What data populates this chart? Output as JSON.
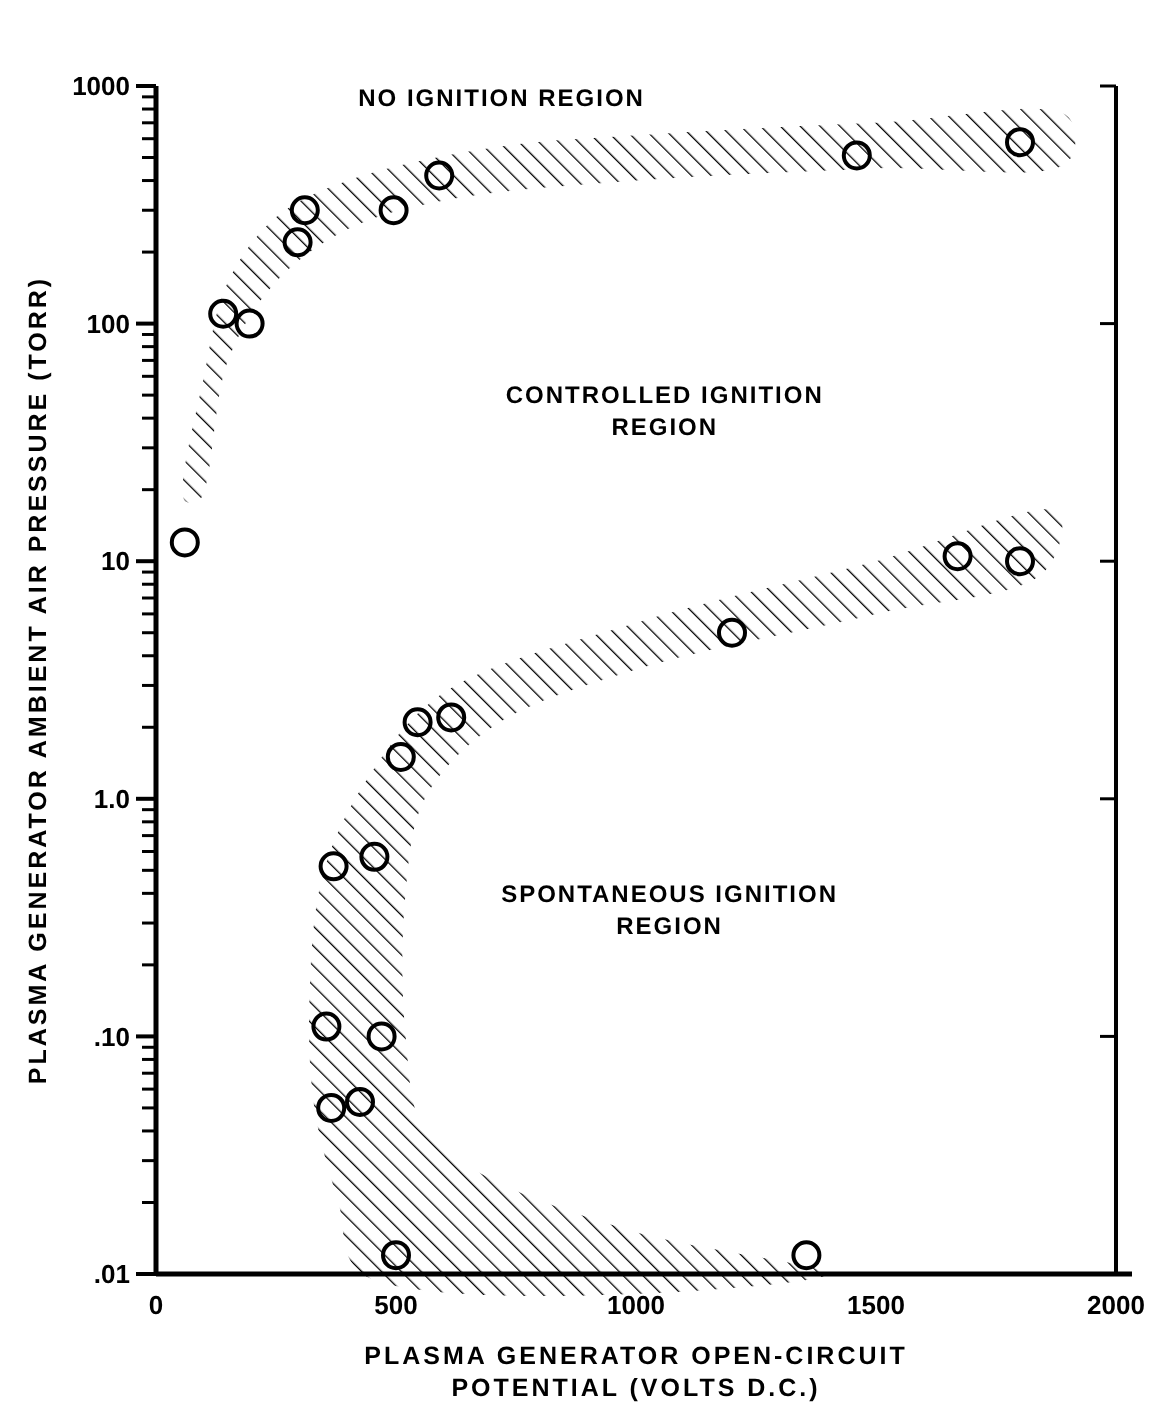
{
  "chart_data": {
    "type": "scatter",
    "xlabel": "PLASMA GENERATOR OPEN-CIRCUIT\nPOTENTIAL (VOLTS D.C.)",
    "ylabel": "PLASMA GENERATOR AMBIENT AIR PRESSURE (TORR)",
    "log": "y",
    "grid": false,
    "marker": "circle",
    "xlim": [
      0,
      2000
    ],
    "xticks": [
      0,
      500,
      1000,
      1500,
      2000
    ],
    "ylim": [
      0.01,
      1000
    ],
    "yticks": [
      {
        "value": 0.01,
        "label": ".01"
      },
      {
        "value": 0.02,
        "label": null
      },
      {
        "value": 0.03,
        "label": null
      },
      {
        "value": 0.04,
        "label": null
      },
      {
        "value": 0.05,
        "label": null
      },
      {
        "value": 0.06,
        "label": null
      },
      {
        "value": 0.07,
        "label": null
      },
      {
        "value": 0.08,
        "label": null
      },
      {
        "value": 0.09,
        "label": null
      },
      {
        "value": 0.1,
        "label": ".10"
      },
      {
        "value": 0.2,
        "label": null
      },
      {
        "value": 0.3,
        "label": null
      },
      {
        "value": 0.4,
        "label": null
      },
      {
        "value": 0.5,
        "label": null
      },
      {
        "value": 0.6,
        "label": null
      },
      {
        "value": 0.7,
        "label": null
      },
      {
        "value": 0.8,
        "label": null
      },
      {
        "value": 0.9,
        "label": null
      },
      {
        "value": 1,
        "label": "1.0"
      },
      {
        "value": 2,
        "label": null
      },
      {
        "value": 3,
        "label": null
      },
      {
        "value": 4,
        "label": null
      },
      {
        "value": 5,
        "label": null
      },
      {
        "value": 6,
        "label": null
      },
      {
        "value": 7,
        "label": null
      },
      {
        "value": 8,
        "label": null
      },
      {
        "value": 9,
        "label": null
      },
      10,
      {
        "value": 20,
        "label": null
      },
      {
        "value": 30,
        "label": null
      },
      {
        "value": 40,
        "label": null
      },
      {
        "value": 50,
        "label": null
      },
      {
        "value": 60,
        "label": null
      },
      {
        "value": 70,
        "label": null
      },
      {
        "value": 80,
        "label": null
      },
      {
        "value": 90,
        "label": null
      },
      100,
      {
        "value": 200,
        "label": null
      },
      {
        "value": 300,
        "label": null
      },
      {
        "value": 400,
        "label": null
      },
      {
        "value": 500,
        "label": null
      },
      {
        "value": 600,
        "label": null
      },
      {
        "value": 700,
        "label": null
      },
      {
        "value": 800,
        "label": null
      },
      {
        "value": 900,
        "label": null
      },
      1000
    ],
    "series": [
      {
        "type": "area",
        "marker": "none",
        "color": "#000000",
        "x": [
          60,
          100,
          150,
          250,
          400,
          700,
          1000,
          1500,
          1900,
          1900,
          1500,
          1000,
          600,
          400,
          250,
          150,
          90
        ],
        "values": [
          18,
          60,
          150,
          280,
          400,
          550,
          620,
          700,
          740,
          480,
          450,
          400,
          330,
          250,
          150,
          70,
          18
        ]
      },
      {
        "type": "area",
        "marker": "none",
        "color": "#000000",
        "x": [
          1880,
          1500,
          1000,
          600,
          450,
          350,
          320,
          330,
          380,
          430,
          1400,
          1000,
          700,
          560,
          520,
          520,
          560,
          700,
          1000,
          1500,
          1850
        ],
        "values": [
          16,
          10,
          5.5,
          2.8,
          1.3,
          0.5,
          0.15,
          0.05,
          0.02,
          0.01,
          0.01,
          0.015,
          0.025,
          0.04,
          0.1,
          0.4,
          1,
          2,
          3.5,
          6,
          9
        ]
      },
      {
        "color": "#000000",
        "x": [
          60,
          140,
          195,
          295,
          310,
          495,
          590,
          1460,
          1800,
          1200,
          1670,
          1800,
          510,
          545,
          615,
          370,
          455,
          355,
          470,
          365,
          425,
          500,
          1355
        ],
        "values": [
          12,
          110,
          100,
          220,
          300,
          300,
          420,
          510,
          580,
          5,
          10.5,
          10,
          1.5,
          2.1,
          2.2,
          0.52,
          0.57,
          0.11,
          0.1,
          0.05,
          0.053,
          0.012,
          0.012
        ]
      }
    ],
    "annotations": [
      "NO IGNITION REGION",
      "CONTROLLED IGNITION\nREGION",
      "SPONTANEOUS IGNITION\nREGION"
    ]
  }
}
